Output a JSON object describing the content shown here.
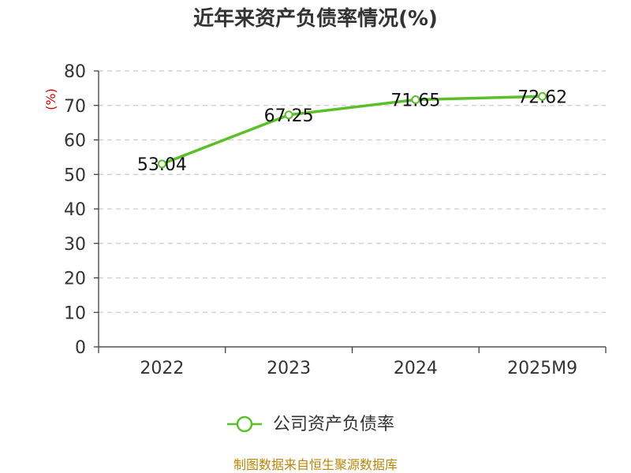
{
  "chart_data": {
    "type": "line",
    "title": "近年来资产负债率情况(%)",
    "ylabel": "(%)",
    "xlabel": "",
    "categories": [
      "2022",
      "2023",
      "2024",
      "2025M9"
    ],
    "series": [
      {
        "name": "公司资产负债率",
        "values": [
          53.04,
          67.25,
          71.65,
          72.62
        ]
      }
    ],
    "ylim": [
      0,
      80
    ],
    "yticks": [
      0,
      10,
      20,
      30,
      40,
      50,
      60,
      70,
      80
    ],
    "grid": true,
    "legend": "bottom-center"
  },
  "data_labels": [
    "53.04",
    "67.25",
    "71.65",
    "72.62"
  ],
  "footer": "制图数据来自恒生聚源数据库",
  "colors": {
    "series": "#5cbf2a",
    "axis": "#333333",
    "grid": "#cccccc",
    "ylabel": "#cc0000",
    "footer": "#b8860b"
  }
}
